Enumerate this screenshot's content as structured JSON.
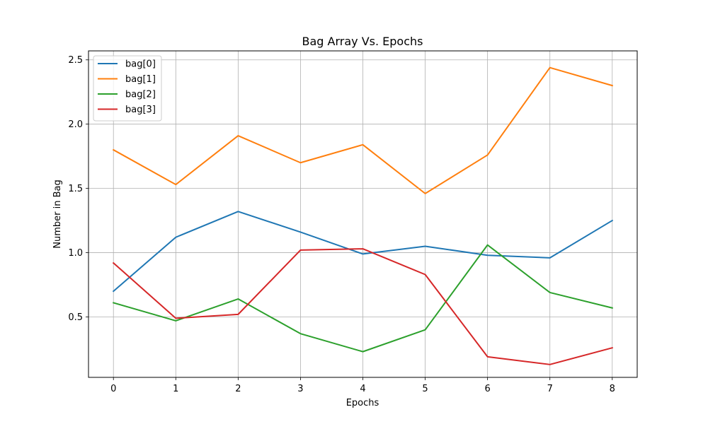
{
  "chart_data": {
    "type": "line",
    "title": "Bag Array Vs. Epochs",
    "xlabel": "Epochs",
    "ylabel": "Number in Bag",
    "x": [
      0,
      1,
      2,
      3,
      4,
      5,
      6,
      7,
      8
    ],
    "xlim": [
      -0.4,
      8.4
    ],
    "ylim": [
      0.03,
      2.57
    ],
    "x_ticks": [
      0,
      1,
      2,
      3,
      4,
      5,
      6,
      7,
      8
    ],
    "y_ticks": [
      0.5,
      1.0,
      1.5,
      2.0,
      2.5
    ],
    "y_tick_labels": [
      "0.5",
      "1.0",
      "1.5",
      "2.0",
      "2.5"
    ],
    "grid": true,
    "legend_position": "top-left",
    "series": [
      {
        "name": "bag[0]",
        "color": "#1f77b4",
        "values": [
          0.7,
          1.12,
          1.32,
          1.16,
          0.99,
          1.05,
          0.98,
          0.96,
          1.25
        ]
      },
      {
        "name": "bag[1]",
        "color": "#ff7f0e",
        "values": [
          1.8,
          1.53,
          1.91,
          1.7,
          1.84,
          1.46,
          1.76,
          2.44,
          2.3
        ]
      },
      {
        "name": "bag[2]",
        "color": "#2ca02c",
        "values": [
          0.61,
          0.47,
          0.64,
          0.37,
          0.23,
          0.4,
          1.06,
          0.69,
          0.57
        ]
      },
      {
        "name": "bag[3]",
        "color": "#d62728",
        "values": [
          0.92,
          0.49,
          0.52,
          1.02,
          1.03,
          0.83,
          0.19,
          0.13,
          0.26
        ]
      }
    ]
  }
}
